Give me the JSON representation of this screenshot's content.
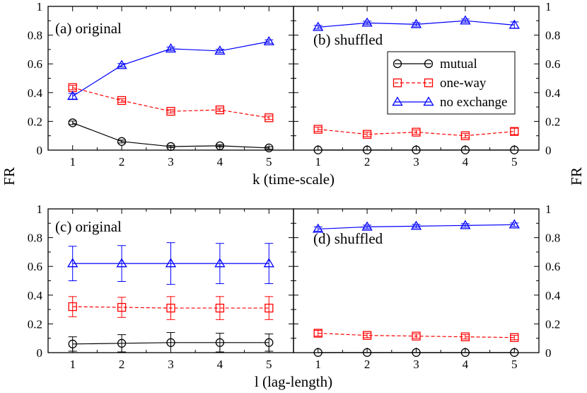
{
  "figure": {
    "ylabel_left": "FR",
    "ylabel_right": "FR"
  },
  "chart_data": [
    {
      "type": "line",
      "panel": "top-left",
      "title": "(a) original",
      "xlabel": "k (time-scale)",
      "ylabel": "FR",
      "x": [
        1,
        2,
        3,
        4,
        5
      ],
      "xlim": [
        0.5,
        5.5
      ],
      "ylim": [
        0,
        1
      ],
      "xticks": [
        1,
        2,
        3,
        4,
        5
      ],
      "yticks": [
        0,
        0.2,
        0.4,
        0.6,
        0.8,
        1
      ],
      "ytick_labels": [
        "0",
        "0.2",
        "0.4",
        "0.6",
        "0.8",
        "1"
      ],
      "series": [
        {
          "name": "mutual",
          "color": "#000000",
          "marker": "circle",
          "dashed": false,
          "values": [
            0.19,
            0.06,
            0.025,
            0.03,
            0.015
          ],
          "errors": [
            0.012,
            0.01,
            0.008,
            0.008,
            0.008
          ]
        },
        {
          "name": "one-way",
          "color": "#ff0000",
          "marker": "square",
          "dashed": true,
          "values": [
            0.435,
            0.345,
            0.27,
            0.28,
            0.225
          ],
          "errors": [
            0.015,
            0.012,
            0.012,
            0.012,
            0.012
          ]
        },
        {
          "name": "no exchange",
          "color": "#0000ff",
          "marker": "triangle",
          "dashed": false,
          "values": [
            0.375,
            0.59,
            0.705,
            0.69,
            0.755
          ],
          "errors": [
            0.02,
            0.012,
            0.012,
            0.012,
            0.012
          ]
        }
      ]
    },
    {
      "type": "line",
      "panel": "top-right",
      "title": "(b) shuffled",
      "xlabel": "",
      "ylabel": "FR",
      "x": [
        1,
        2,
        3,
        4,
        5
      ],
      "xlim": [
        0.5,
        5.5
      ],
      "ylim": [
        0,
        1
      ],
      "xticks": [
        1,
        2,
        3,
        4,
        5
      ],
      "yticks": [
        0,
        0.2,
        0.4,
        0.6,
        0.8,
        1
      ],
      "ytick_labels": [
        "0",
        "0.2",
        "0.4",
        "0.6",
        "0.8",
        "1"
      ],
      "legend_position": "center-right",
      "series": [
        {
          "name": "mutual",
          "color": "#000000",
          "marker": "circle",
          "dashed": false,
          "values": [
            0.001,
            0.001,
            0.001,
            0.001,
            0.001
          ],
          "errors": [
            0,
            0,
            0,
            0,
            0
          ]
        },
        {
          "name": "one-way",
          "color": "#ff0000",
          "marker": "square",
          "dashed": true,
          "values": [
            0.145,
            0.11,
            0.125,
            0.1,
            0.13
          ],
          "errors": [
            0.015,
            0.015,
            0.015,
            0.015,
            0.022
          ]
        },
        {
          "name": "no exchange",
          "color": "#0000ff",
          "marker": "triangle",
          "dashed": false,
          "values": [
            0.855,
            0.885,
            0.875,
            0.9,
            0.87
          ],
          "errors": [
            0.012,
            0.012,
            0.012,
            0.012,
            0.022
          ]
        }
      ]
    },
    {
      "type": "line",
      "panel": "bottom-left",
      "title": "(c) original",
      "xlabel": "l (lag-length)",
      "ylabel": "FR",
      "x": [
        1,
        2,
        3,
        4,
        5
      ],
      "xlim": [
        0.5,
        5.5
      ],
      "ylim": [
        0,
        1
      ],
      "xticks": [
        1,
        2,
        3,
        4,
        5
      ],
      "yticks": [
        0,
        0.2,
        0.4,
        0.6,
        0.8,
        1
      ],
      "ytick_labels": [
        "0",
        "0.2",
        "0.4",
        "0.6",
        "0.8",
        "1"
      ],
      "series": [
        {
          "name": "mutual",
          "color": "#000000",
          "marker": "circle",
          "dashed": false,
          "values": [
            0.06,
            0.065,
            0.07,
            0.07,
            0.07
          ],
          "errors": [
            0.05,
            0.06,
            0.07,
            0.065,
            0.06
          ]
        },
        {
          "name": "one-way",
          "color": "#ff0000",
          "marker": "square",
          "dashed": true,
          "values": [
            0.32,
            0.315,
            0.31,
            0.31,
            0.31
          ],
          "errors": [
            0.07,
            0.07,
            0.08,
            0.08,
            0.08
          ]
        },
        {
          "name": "no exchange",
          "color": "#0000ff",
          "marker": "triangle",
          "dashed": false,
          "values": [
            0.62,
            0.62,
            0.62,
            0.62,
            0.62
          ],
          "errors": [
            0.12,
            0.125,
            0.145,
            0.14,
            0.14
          ]
        }
      ]
    },
    {
      "type": "line",
      "panel": "bottom-right",
      "title": "(d) shuffled",
      "xlabel": "",
      "ylabel": "FR",
      "x": [
        1,
        2,
        3,
        4,
        5
      ],
      "xlim": [
        0.5,
        5.5
      ],
      "ylim": [
        0,
        1
      ],
      "xticks": [
        1,
        2,
        3,
        4,
        5
      ],
      "yticks": [
        0,
        0.2,
        0.4,
        0.6,
        0.8,
        1
      ],
      "ytick_labels": [
        "0",
        "0.2",
        "0.4",
        "0.6",
        "0.8",
        "1"
      ],
      "series": [
        {
          "name": "mutual",
          "color": "#000000",
          "marker": "circle",
          "dashed": false,
          "values": [
            0.001,
            0.001,
            0.001,
            0.001,
            0.001
          ],
          "errors": [
            0,
            0,
            0,
            0,
            0
          ]
        },
        {
          "name": "one-way",
          "color": "#ff0000",
          "marker": "square",
          "dashed": true,
          "values": [
            0.135,
            0.12,
            0.115,
            0.11,
            0.105
          ],
          "errors": [
            0.02,
            0.015,
            0.015,
            0.015,
            0.015
          ]
        },
        {
          "name": "no exchange",
          "color": "#0000ff",
          "marker": "triangle",
          "dashed": false,
          "values": [
            0.86,
            0.875,
            0.88,
            0.885,
            0.89
          ],
          "errors": [
            0.015,
            0.012,
            0.012,
            0.012,
            0.012
          ]
        }
      ]
    }
  ]
}
